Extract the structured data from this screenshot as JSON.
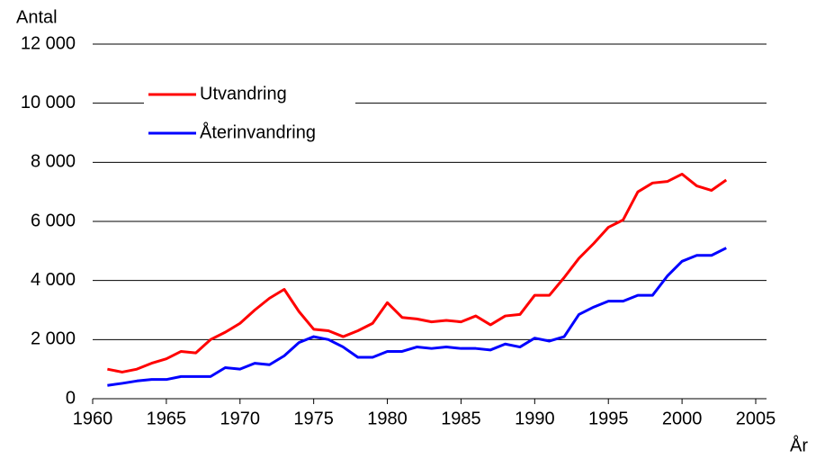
{
  "chart_data": {
    "type": "line",
    "y_label": "Antal",
    "x_label": "År",
    "x": [
      1961,
      1962,
      1963,
      1964,
      1965,
      1966,
      1967,
      1968,
      1969,
      1970,
      1971,
      1972,
      1973,
      1974,
      1975,
      1976,
      1977,
      1978,
      1979,
      1980,
      1981,
      1982,
      1983,
      1984,
      1985,
      1986,
      1987,
      1988,
      1989,
      1990,
      1991,
      1992,
      1993,
      1994,
      1995,
      1996,
      1997,
      1998,
      1999,
      2000,
      2001,
      2002,
      2003
    ],
    "series": [
      {
        "name": "Utvandring",
        "color": "#ff0000",
        "values": [
          1000,
          900,
          1000,
          1200,
          1350,
          1600,
          1550,
          2000,
          2250,
          2550,
          3000,
          3400,
          3700,
          2950,
          2350,
          2300,
          2100,
          2300,
          2550,
          3250,
          2750,
          2700,
          2600,
          2650,
          2600,
          2800,
          2500,
          2800,
          2850,
          3500,
          3500,
          4100,
          4750,
          5250,
          5800,
          6050,
          7000,
          7300,
          7350,
          7600,
          7200,
          7050,
          7400
        ]
      },
      {
        "name": "Återinvandring",
        "color": "#0000ff",
        "values": [
          450,
          520,
          600,
          650,
          650,
          750,
          750,
          750,
          1050,
          1000,
          1200,
          1150,
          1450,
          1900,
          2100,
          2000,
          1750,
          1400,
          1400,
          1600,
          1600,
          1750,
          1700,
          1750,
          1700,
          1700,
          1650,
          1850,
          1750,
          2050,
          1950,
          2100,
          2850,
          3100,
          3300,
          3300,
          3500,
          3500,
          4150,
          4650,
          4850,
          4850,
          5100
        ]
      }
    ],
    "xlim": [
      1960,
      2005
    ],
    "xticks": [
      1960,
      1965,
      1970,
      1975,
      1980,
      1985,
      1990,
      1995,
      2000,
      2005
    ],
    "ylim": [
      0,
      12000
    ],
    "yticks": [
      0,
      {
        "value": 2000,
        "label": "2 000"
      },
      {
        "value": 4000,
        "label": "4 000"
      },
      {
        "value": 6000,
        "label": "6 000"
      },
      {
        "value": 8000,
        "label": "8 000"
      },
      {
        "value": 10000,
        "label": "10 000"
      },
      {
        "value": 12000,
        "label": "12 000"
      }
    ],
    "grid": true,
    "legend": "upper-left"
  }
}
